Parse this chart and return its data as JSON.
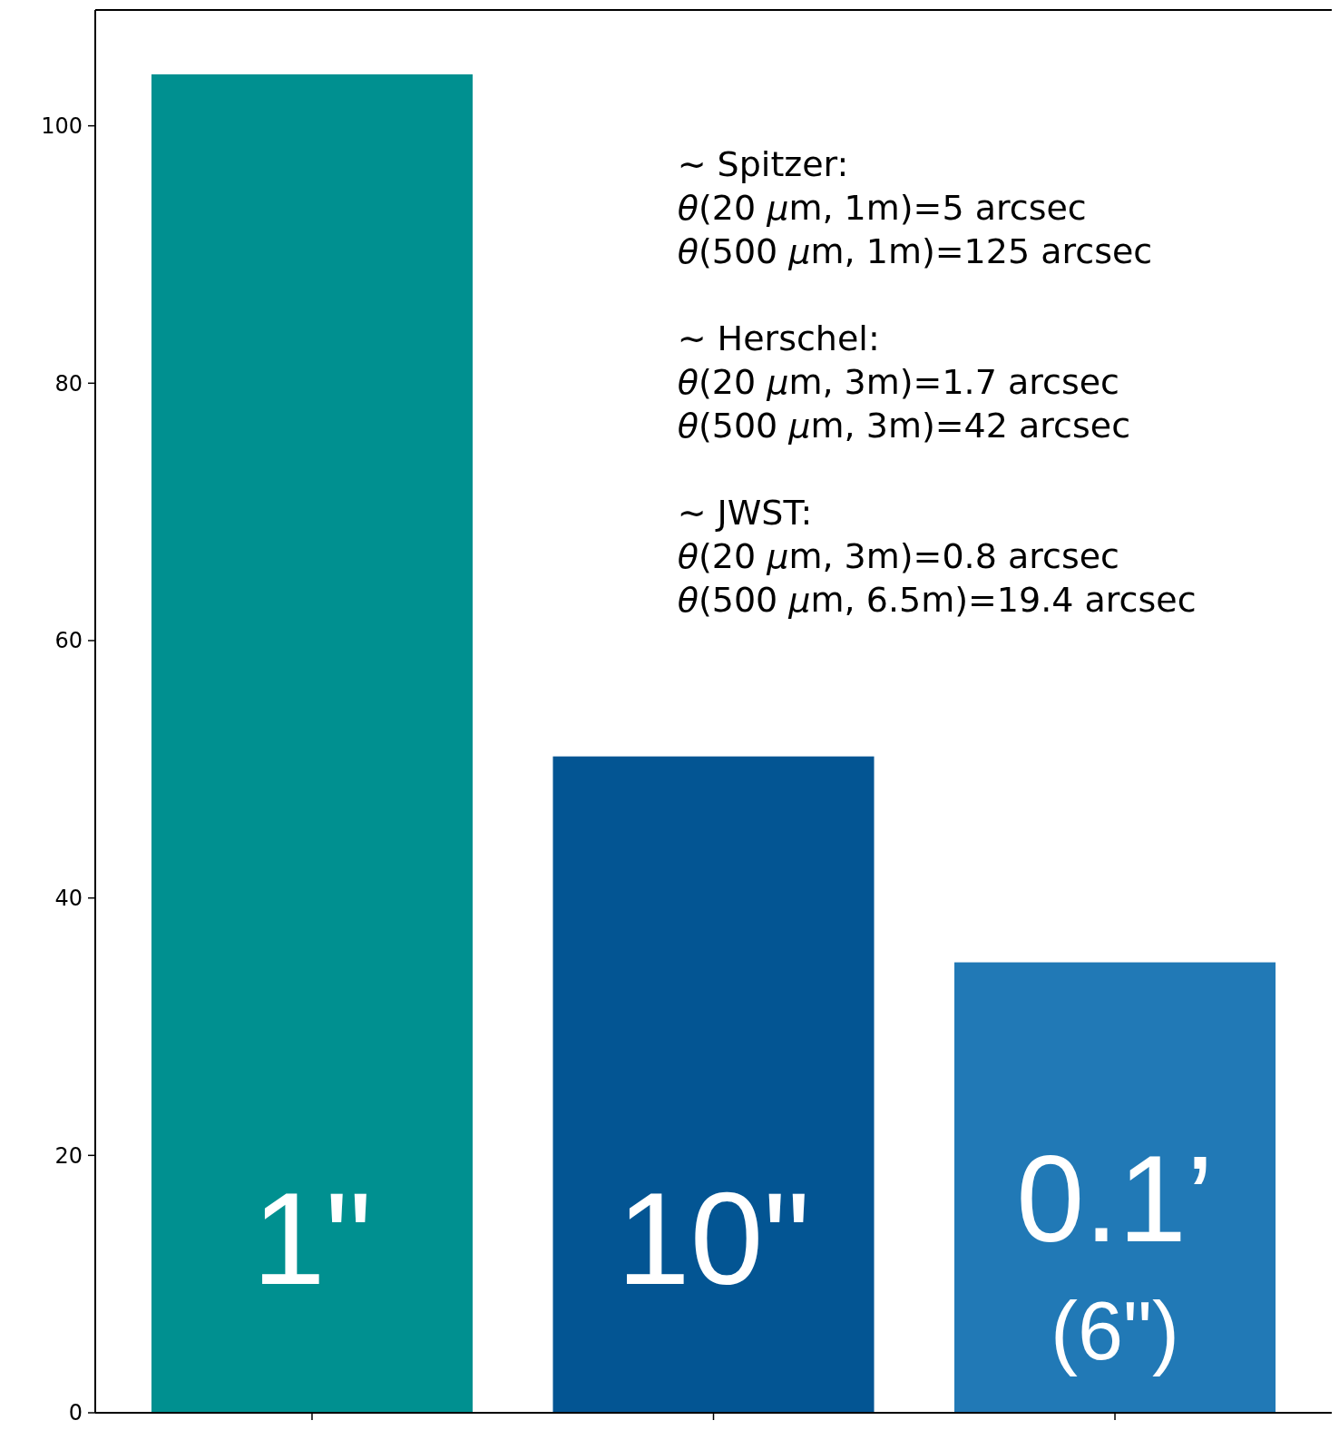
{
  "chart_data": {
    "type": "bar",
    "categories": [
      null,
      null,
      null
    ],
    "values": [
      104,
      51,
      35
    ],
    "colors": [
      "#009090",
      "#035593",
      "#2179b6"
    ],
    "ylim": [
      0,
      109
    ],
    "yticks": [
      0,
      20,
      40,
      60,
      80,
      100
    ],
    "tick_labels": "y",
    "grid": false,
    "annotations": [
      "1\"",
      "10\"",
      "0.1’\n(6\")",
      "∼ Spitzer:\nθ(20 μm, 1m)=5 arcsec\nθ(500 μm, 1m)=125 arcsec",
      "∼ Herschel:\nθ(20 μm, 3m)=1.7 arcsec\nθ(500 μm, 3m)=42 arcsec",
      "∼ JWST:\nθ(20 μm, 3m)=0.8 arcsec\nθ(500 μm, 6.5m)=19.4 arcsec"
    ]
  }
}
